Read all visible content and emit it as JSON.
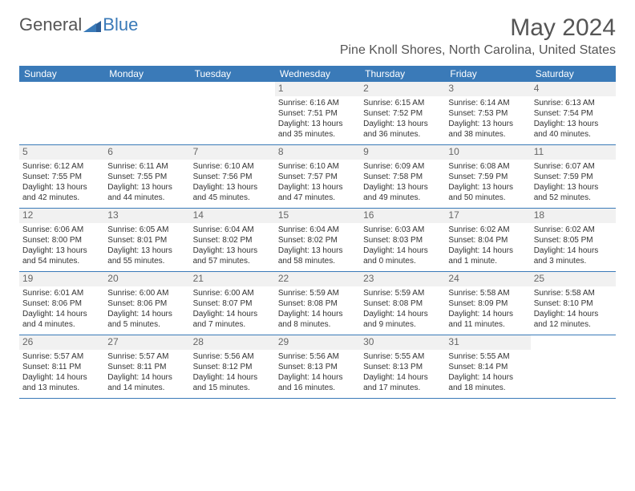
{
  "logo": {
    "general": "General",
    "blue": "Blue"
  },
  "title": "May 2024",
  "location": "Pine Knoll Shores, North Carolina, United States",
  "dayheaders": [
    "Sunday",
    "Monday",
    "Tuesday",
    "Wednesday",
    "Thursday",
    "Friday",
    "Saturday"
  ],
  "colors": {
    "header_bg": "#3a7ab8",
    "header_text": "#ffffff",
    "daynum_bg": "#f1f1f1",
    "text": "#333333",
    "title_color": "#555555"
  },
  "weeks": [
    [
      null,
      null,
      null,
      {
        "n": "1",
        "sr": "Sunrise: 6:16 AM",
        "ss": "Sunset: 7:51 PM",
        "dl": "Daylight: 13 hours and 35 minutes."
      },
      {
        "n": "2",
        "sr": "Sunrise: 6:15 AM",
        "ss": "Sunset: 7:52 PM",
        "dl": "Daylight: 13 hours and 36 minutes."
      },
      {
        "n": "3",
        "sr": "Sunrise: 6:14 AM",
        "ss": "Sunset: 7:53 PM",
        "dl": "Daylight: 13 hours and 38 minutes."
      },
      {
        "n": "4",
        "sr": "Sunrise: 6:13 AM",
        "ss": "Sunset: 7:54 PM",
        "dl": "Daylight: 13 hours and 40 minutes."
      }
    ],
    [
      {
        "n": "5",
        "sr": "Sunrise: 6:12 AM",
        "ss": "Sunset: 7:55 PM",
        "dl": "Daylight: 13 hours and 42 minutes."
      },
      {
        "n": "6",
        "sr": "Sunrise: 6:11 AM",
        "ss": "Sunset: 7:55 PM",
        "dl": "Daylight: 13 hours and 44 minutes."
      },
      {
        "n": "7",
        "sr": "Sunrise: 6:10 AM",
        "ss": "Sunset: 7:56 PM",
        "dl": "Daylight: 13 hours and 45 minutes."
      },
      {
        "n": "8",
        "sr": "Sunrise: 6:10 AM",
        "ss": "Sunset: 7:57 PM",
        "dl": "Daylight: 13 hours and 47 minutes."
      },
      {
        "n": "9",
        "sr": "Sunrise: 6:09 AM",
        "ss": "Sunset: 7:58 PM",
        "dl": "Daylight: 13 hours and 49 minutes."
      },
      {
        "n": "10",
        "sr": "Sunrise: 6:08 AM",
        "ss": "Sunset: 7:59 PM",
        "dl": "Daylight: 13 hours and 50 minutes."
      },
      {
        "n": "11",
        "sr": "Sunrise: 6:07 AM",
        "ss": "Sunset: 7:59 PM",
        "dl": "Daylight: 13 hours and 52 minutes."
      }
    ],
    [
      {
        "n": "12",
        "sr": "Sunrise: 6:06 AM",
        "ss": "Sunset: 8:00 PM",
        "dl": "Daylight: 13 hours and 54 minutes."
      },
      {
        "n": "13",
        "sr": "Sunrise: 6:05 AM",
        "ss": "Sunset: 8:01 PM",
        "dl": "Daylight: 13 hours and 55 minutes."
      },
      {
        "n": "14",
        "sr": "Sunrise: 6:04 AM",
        "ss": "Sunset: 8:02 PM",
        "dl": "Daylight: 13 hours and 57 minutes."
      },
      {
        "n": "15",
        "sr": "Sunrise: 6:04 AM",
        "ss": "Sunset: 8:02 PM",
        "dl": "Daylight: 13 hours and 58 minutes."
      },
      {
        "n": "16",
        "sr": "Sunrise: 6:03 AM",
        "ss": "Sunset: 8:03 PM",
        "dl": "Daylight: 14 hours and 0 minutes."
      },
      {
        "n": "17",
        "sr": "Sunrise: 6:02 AM",
        "ss": "Sunset: 8:04 PM",
        "dl": "Daylight: 14 hours and 1 minute."
      },
      {
        "n": "18",
        "sr": "Sunrise: 6:02 AM",
        "ss": "Sunset: 8:05 PM",
        "dl": "Daylight: 14 hours and 3 minutes."
      }
    ],
    [
      {
        "n": "19",
        "sr": "Sunrise: 6:01 AM",
        "ss": "Sunset: 8:06 PM",
        "dl": "Daylight: 14 hours and 4 minutes."
      },
      {
        "n": "20",
        "sr": "Sunrise: 6:00 AM",
        "ss": "Sunset: 8:06 PM",
        "dl": "Daylight: 14 hours and 5 minutes."
      },
      {
        "n": "21",
        "sr": "Sunrise: 6:00 AM",
        "ss": "Sunset: 8:07 PM",
        "dl": "Daylight: 14 hours and 7 minutes."
      },
      {
        "n": "22",
        "sr": "Sunrise: 5:59 AM",
        "ss": "Sunset: 8:08 PM",
        "dl": "Daylight: 14 hours and 8 minutes."
      },
      {
        "n": "23",
        "sr": "Sunrise: 5:59 AM",
        "ss": "Sunset: 8:08 PM",
        "dl": "Daylight: 14 hours and 9 minutes."
      },
      {
        "n": "24",
        "sr": "Sunrise: 5:58 AM",
        "ss": "Sunset: 8:09 PM",
        "dl": "Daylight: 14 hours and 11 minutes."
      },
      {
        "n": "25",
        "sr": "Sunrise: 5:58 AM",
        "ss": "Sunset: 8:10 PM",
        "dl": "Daylight: 14 hours and 12 minutes."
      }
    ],
    [
      {
        "n": "26",
        "sr": "Sunrise: 5:57 AM",
        "ss": "Sunset: 8:11 PM",
        "dl": "Daylight: 14 hours and 13 minutes."
      },
      {
        "n": "27",
        "sr": "Sunrise: 5:57 AM",
        "ss": "Sunset: 8:11 PM",
        "dl": "Daylight: 14 hours and 14 minutes."
      },
      {
        "n": "28",
        "sr": "Sunrise: 5:56 AM",
        "ss": "Sunset: 8:12 PM",
        "dl": "Daylight: 14 hours and 15 minutes."
      },
      {
        "n": "29",
        "sr": "Sunrise: 5:56 AM",
        "ss": "Sunset: 8:13 PM",
        "dl": "Daylight: 14 hours and 16 minutes."
      },
      {
        "n": "30",
        "sr": "Sunrise: 5:55 AM",
        "ss": "Sunset: 8:13 PM",
        "dl": "Daylight: 14 hours and 17 minutes."
      },
      {
        "n": "31",
        "sr": "Sunrise: 5:55 AM",
        "ss": "Sunset: 8:14 PM",
        "dl": "Daylight: 14 hours and 18 minutes."
      },
      null
    ]
  ]
}
